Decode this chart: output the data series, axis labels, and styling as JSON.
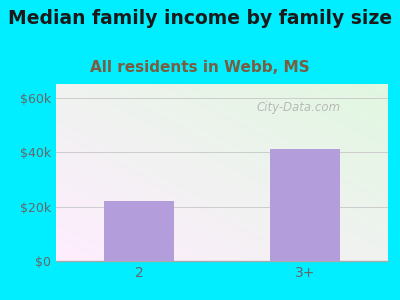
{
  "title": "Median family income by family size",
  "subtitle": "All residents in Webb, MS",
  "categories": [
    "2",
    "3+"
  ],
  "values": [
    22000,
    41000
  ],
  "bar_color": "#b39ddb",
  "title_fontsize": 13.5,
  "subtitle_fontsize": 11,
  "subtitle_color": "#7a5c3e",
  "title_color": "#1a1a1a",
  "ylabel_ticks": [
    0,
    20000,
    40000,
    60000
  ],
  "ylabel_labels": [
    "$0",
    "$20k",
    "$40k",
    "$60k"
  ],
  "ylim": [
    0,
    65000
  ],
  "background_outer": "#00eeff",
  "watermark": "City-Data.com",
  "tick_color": "#666666",
  "axis_color": "#aaaaaa"
}
